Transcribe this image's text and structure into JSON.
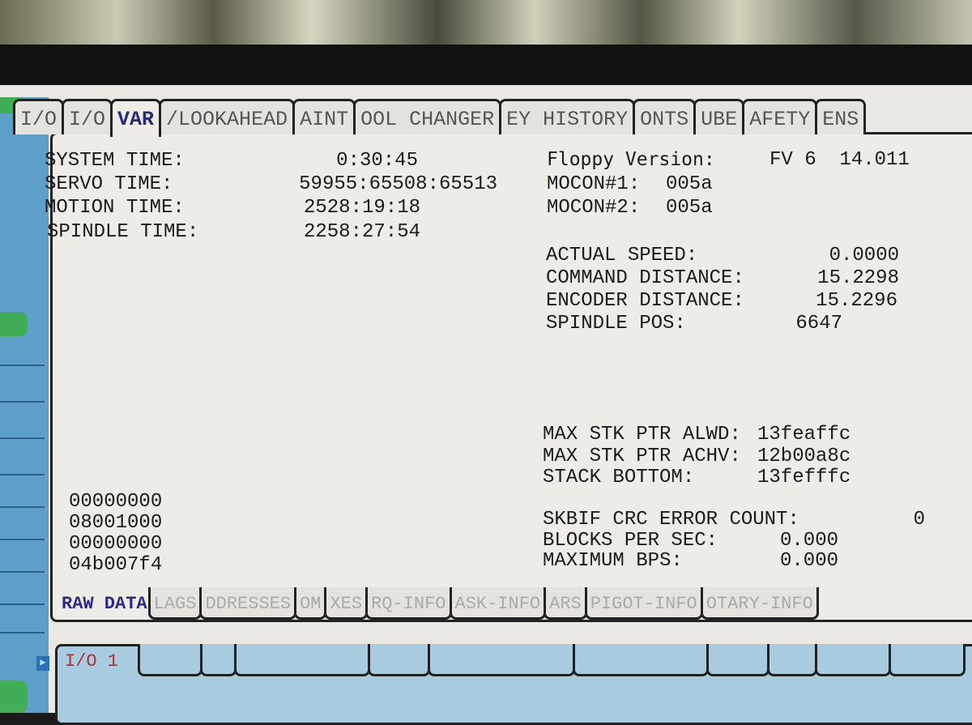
{
  "top_tabs": [
    {
      "label": "I/O"
    },
    {
      "label": "I/O"
    },
    {
      "label": "VAR",
      "active": true
    },
    {
      "label": "/LOOKAHEAD"
    },
    {
      "label": "AINT"
    },
    {
      "label": "OOL CHANGER"
    },
    {
      "label": "EY HISTORY"
    },
    {
      "label": "ONTS"
    },
    {
      "label": "UBE"
    },
    {
      "label": "AFETY"
    },
    {
      "label": "ENS"
    }
  ],
  "times": [
    {
      "label": "SYSTEM TIME:",
      "value": "0:30:45"
    },
    {
      "label": "SERVO TIME:",
      "value": "59955:65508:65513"
    },
    {
      "label": "MOTION TIME:",
      "value": "2528:19:18"
    },
    {
      "label": "SPINDLE TIME:",
      "value": "2258:27:54"
    }
  ],
  "versions": {
    "floppy_label": "Floppy Version:",
    "floppy_value": "FV 6  14.011",
    "mocon1_label": "MOCON#1:",
    "mocon1_value": "005a",
    "mocon2_label": "MOCON#2:",
    "mocon2_value": "005a"
  },
  "motion": [
    {
      "label": "ACTUAL SPEED:",
      "value": "0.0000"
    },
    {
      "label": "COMMAND DISTANCE:",
      "value": "15.2298"
    },
    {
      "label": "ENCODER DISTANCE:",
      "value": "15.2296"
    },
    {
      "label": "SPINDLE POS:",
      "value": "6647"
    }
  ],
  "stack": [
    {
      "label": "MAX STK PTR ALWD:",
      "value": "13feaffc"
    },
    {
      "label": "MAX STK PTR ACHV:",
      "value": "12b00a8c"
    },
    {
      "label": "STACK BOTTOM:",
      "value": "13fefffc"
    }
  ],
  "stats": [
    {
      "label": "SKBIF CRC ERROR COUNT:",
      "value": "0"
    },
    {
      "label": "BLOCKS PER SEC:",
      "value": "0.000"
    },
    {
      "label": "MAXIMUM BPS:",
      "value": "0.000"
    }
  ],
  "raw": [
    "00000000",
    "08001000",
    "00000000",
    "04b007f4"
  ],
  "bottom_tabs": [
    {
      "label": "RAW DATA",
      "active": true
    },
    {
      "label": "LAGS"
    },
    {
      "label": "DDRESSES"
    },
    {
      "label": "OM"
    },
    {
      "label": "XES"
    },
    {
      "label": "RQ-INFO"
    },
    {
      "label": "ASK-INFO"
    },
    {
      "label": "ARS"
    },
    {
      "label": "PIGOT-INFO"
    },
    {
      "label": "OTARY-INFO"
    }
  ],
  "lower_panel": {
    "tab_label": "I/O 1"
  },
  "colors": {
    "screen_bg": "#edece7",
    "active_tab_text": "#2a2a7a",
    "lower_panel_bg": "#a9cbe0",
    "sidebar_blue": "#5d9fc8",
    "sidebar_green": "#3fae56"
  }
}
